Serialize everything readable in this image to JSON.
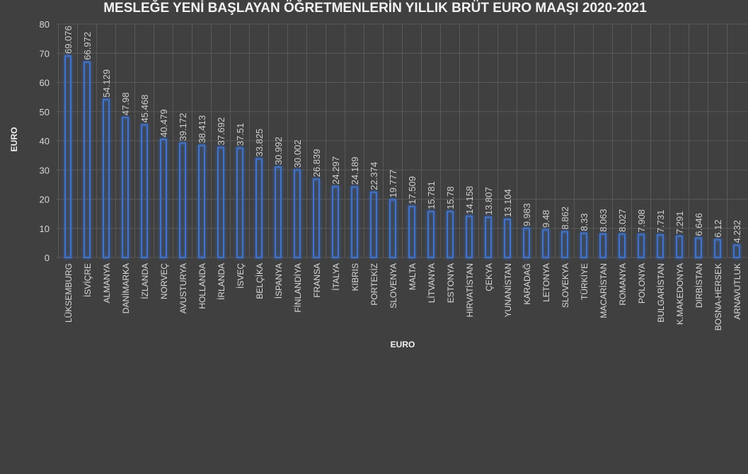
{
  "chart_data": {
    "type": "bar",
    "title": "MESLEĞE YENİ BAŞLAYAN ÖĞRETMENLERİN YILLIK BRÜT EURO MAAŞI 2020-2021",
    "xlabel": "EURO",
    "ylabel": "EURO",
    "ylim": [
      0,
      80
    ],
    "yticks": [
      0,
      10,
      20,
      30,
      40,
      50,
      60,
      70,
      80
    ],
    "grid": true,
    "categories": [
      "LÜKSEMBURG",
      "İSVİÇRE",
      "ALMANYA",
      "DANİMARKA",
      "İZLANDA",
      "NORVEÇ",
      "AVUSTURYA",
      "HOLLANDA",
      "İRLANDA",
      "İSVEÇ",
      "BELÇİKA",
      "İSPANYA",
      "FİNLANDİYA",
      "FRANSA",
      "İTALYA",
      "KIBRIS",
      "PORTEKİZ",
      "SLOVENYA",
      "MALTA",
      "LİTVANYA",
      "ESTONYA",
      "HIRVATİSTAN",
      "ÇEKYA",
      "YUNANİSTAN",
      "KARADAĞ",
      "LETONYA",
      "SLOVEKYA",
      "TÜRKİYE",
      "MACARİSTAN",
      "ROMANYA",
      "POLONYA",
      "BULGARİSTAN",
      "K.MAKEDONYA",
      "DIRBİSTAN",
      "BOSNA-HERSEK",
      "ARNAVUTLUK"
    ],
    "values": [
      69.076,
      66.972,
      54.129,
      47.98,
      45.468,
      40.479,
      39.172,
      38.413,
      37.692,
      37.51,
      33.825,
      30.992,
      30.002,
      26.839,
      24.297,
      24.189,
      22.374,
      19.777,
      17.509,
      15.781,
      15.78,
      14.158,
      13.807,
      13.104,
      9.983,
      9.48,
      8.862,
      8.33,
      8.063,
      8.027,
      7.908,
      7.731,
      7.291,
      6.646,
      6.12,
      4.232
    ],
    "bar_color": "#4472c4"
  }
}
